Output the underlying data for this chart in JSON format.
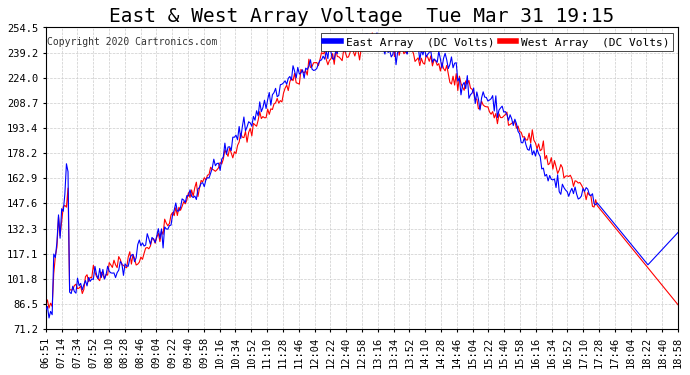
{
  "title": "East & West Array Voltage  Tue Mar 31 19:15",
  "copyright": "Copyright 2020 Cartronics.com",
  "legend_east": "East Array  (DC Volts)",
  "legend_west": "West Array  (DC Volts)",
  "east_color": "#0000ff",
  "west_color": "#ff0000",
  "legend_east_bg": "#0000ff",
  "legend_west_bg": "#ff0000",
  "background_color": "#ffffff",
  "plot_bg_color": "#ffffff",
  "grid_color": "#cccccc",
  "ylim_min": 71.2,
  "ylim_max": 254.5,
  "yticks": [
    71.2,
    86.5,
    101.8,
    117.1,
    132.3,
    147.6,
    162.9,
    178.2,
    193.4,
    208.7,
    224.0,
    239.2,
    254.5
  ],
  "xtick_labels": [
    "06:51",
    "07:14",
    "07:34",
    "07:52",
    "08:10",
    "08:28",
    "08:46",
    "09:04",
    "09:22",
    "09:40",
    "09:58",
    "10:16",
    "10:34",
    "10:52",
    "11:10",
    "11:28",
    "11:46",
    "12:04",
    "12:22",
    "12:40",
    "12:58",
    "13:16",
    "13:34",
    "13:52",
    "14:10",
    "14:28",
    "14:46",
    "15:04",
    "15:22",
    "15:40",
    "15:58",
    "16:16",
    "16:34",
    "16:52",
    "17:10",
    "17:28",
    "17:46",
    "18:04",
    "18:22",
    "18:40",
    "18:58"
  ],
  "title_fontsize": 14,
  "tick_fontsize": 7.5,
  "copyright_fontsize": 7,
  "legend_fontsize": 8,
  "linewidth": 0.8
}
